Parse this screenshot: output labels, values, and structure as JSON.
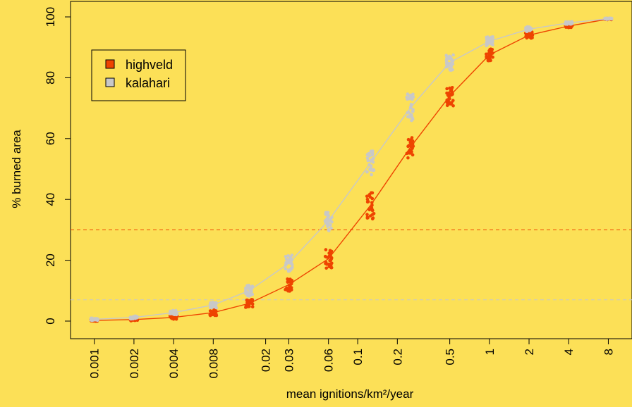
{
  "chart_data": {
    "type": "scatter",
    "title": "",
    "xlabel": "mean ignitions/km²/year",
    "ylabel": "% burned area",
    "x_scale": "log",
    "x_ticks": [
      "0.001",
      "0.002",
      "0.004",
      "0.008",
      "0.02",
      "0.03",
      "0.06",
      "0.1",
      "0.2",
      "0.5",
      "1",
      "2",
      "4",
      "8"
    ],
    "y_ticks": [
      "0",
      "20",
      "40",
      "60",
      "80",
      "100"
    ],
    "ylim": [
      0,
      100
    ],
    "grid": false,
    "legend_position": "top-left",
    "background": "#FCE057",
    "x_values": [
      0.001,
      0.002,
      0.004,
      0.008,
      0.015,
      0.03,
      0.06,
      0.125,
      0.25,
      0.5,
      1,
      2,
      4,
      8
    ],
    "series": [
      {
        "name": "highveld",
        "color": "#EE4400",
        "curve": [
          0.2,
          0.5,
          1.2,
          2.8,
          5.8,
          12,
          20.5,
          38,
          57,
          74,
          87.5,
          94,
          97,
          99.3
        ],
        "spread": [
          0.3,
          0.4,
          0.6,
          1.0,
          1.3,
          2.2,
          3.3,
          4.5,
          3.5,
          3.5,
          2.0,
          1.0,
          0.5,
          0.2
        ],
        "threshold": 30
      },
      {
        "name": "kalahari",
        "color": "#C8C8C8",
        "curve": [
          0.6,
          1.2,
          2.8,
          5.3,
          10,
          19,
          33,
          52,
          70,
          85,
          92,
          96,
          98,
          99.4
        ],
        "spread": [
          0.4,
          0.5,
          0.7,
          1.0,
          1.8,
          2.8,
          3.3,
          4.0,
          5.0,
          2.5,
          1.5,
          0.8,
          0.5,
          0.2
        ],
        "threshold": 7
      }
    ]
  }
}
